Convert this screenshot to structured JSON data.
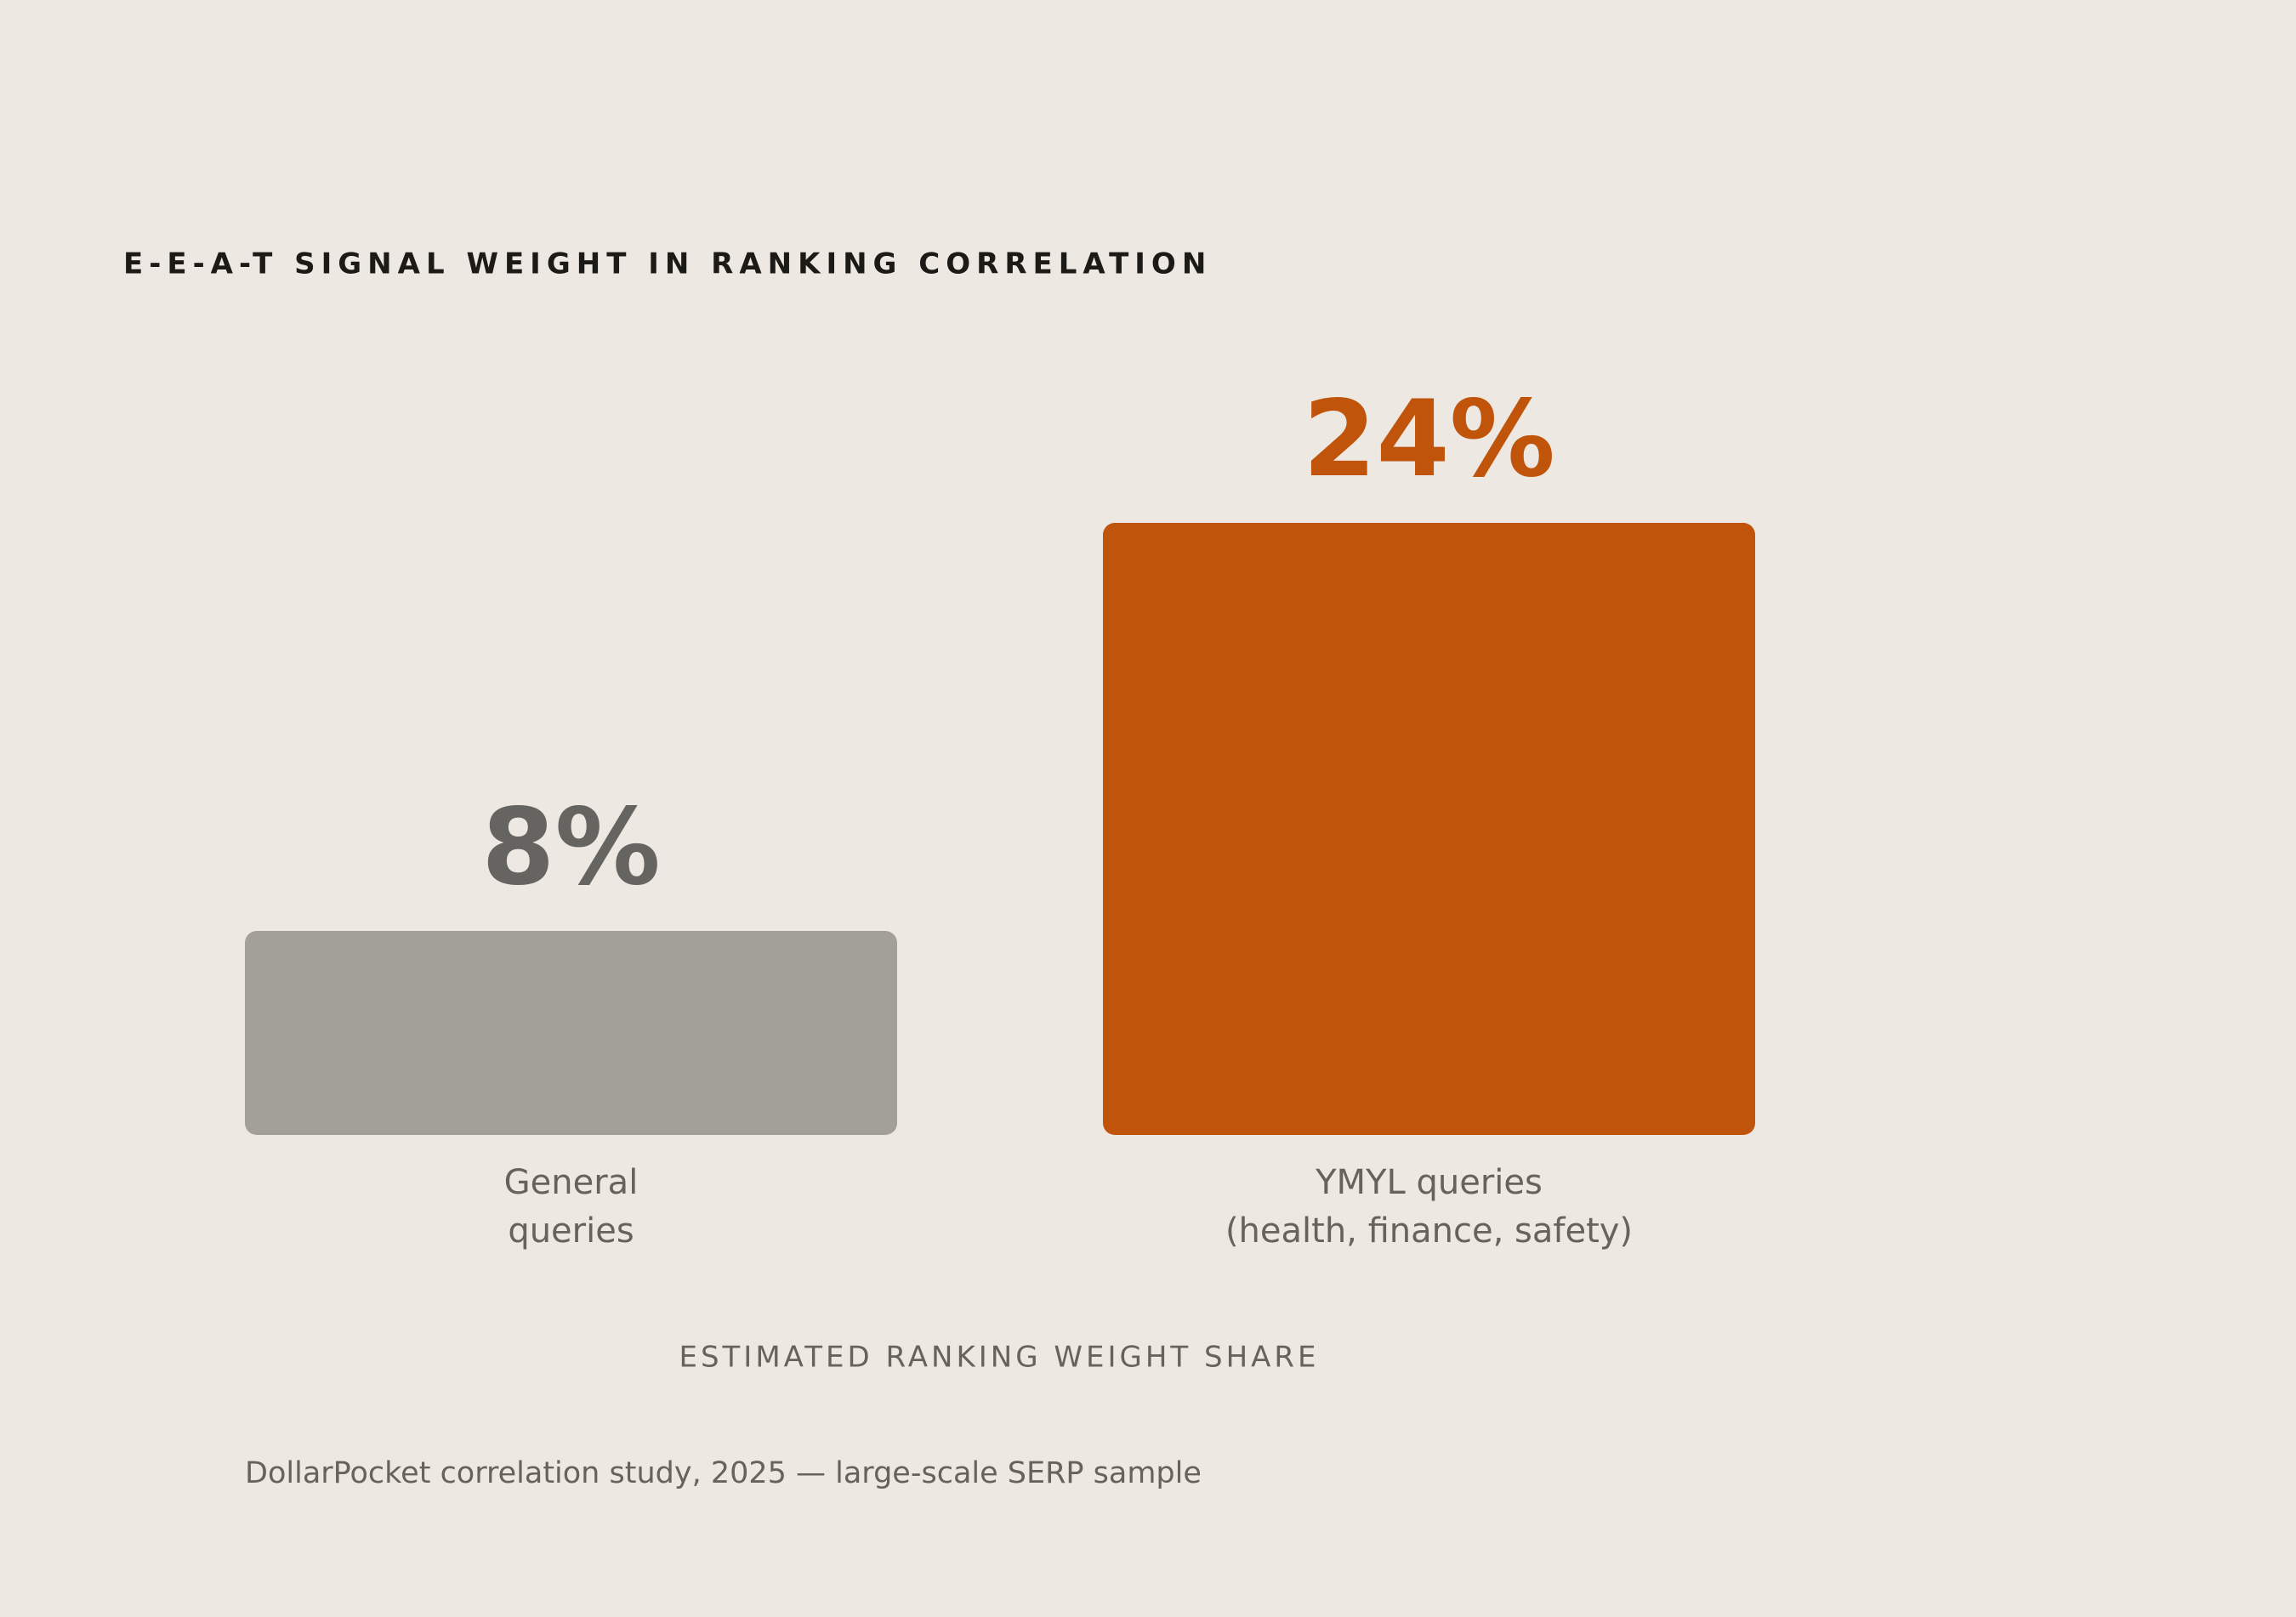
{
  "chart_data": {
    "type": "bar",
    "title": "E-E-A-T SIGNAL WEIGHT IN RANKING CORRELATION",
    "categories": [
      [
        "General",
        "queries"
      ],
      [
        "YMYL queries",
        "(health, finance, safety)"
      ]
    ],
    "values": [
      8,
      24
    ],
    "value_labels": [
      "8%",
      "24%"
    ],
    "colors": [
      "#a3a098",
      "#c0540b"
    ],
    "label_colors": [
      "#666460",
      "#c0540b"
    ],
    "x_label": "ESTIMATED RANKING WEIGHT SHARE",
    "source": "DollarPocket correlation study, 2025 — large-scale SERP sample"
  }
}
